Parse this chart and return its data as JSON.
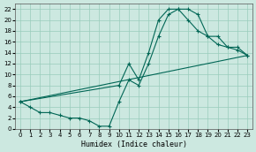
{
  "xlabel": "Humidex (Indice chaleur)",
  "bg_color": "#cce8e0",
  "grid_color": "#99ccbb",
  "line_color": "#006655",
  "xlim": [
    -0.5,
    23.5
  ],
  "ylim": [
    0,
    23
  ],
  "xticks": [
    0,
    1,
    2,
    3,
    4,
    5,
    6,
    7,
    8,
    9,
    10,
    11,
    12,
    13,
    14,
    15,
    16,
    17,
    18,
    19,
    20,
    21,
    22,
    23
  ],
  "yticks": [
    0,
    2,
    4,
    6,
    8,
    10,
    12,
    14,
    16,
    18,
    20,
    22
  ],
  "line1_x": [
    0,
    1,
    2,
    3,
    4,
    5,
    6,
    7,
    8,
    9,
    10,
    11,
    12,
    13,
    14,
    15,
    16,
    17,
    18,
    19,
    20,
    21,
    22,
    23
  ],
  "line1_y": [
    5,
    4,
    3,
    3,
    2.5,
    2,
    2,
    1.5,
    0.5,
    0.5,
    5,
    9,
    8,
    12,
    17,
    21,
    22,
    22,
    21,
    17,
    15.5,
    15,
    14.5,
    13.5
  ],
  "line2_x": [
    0,
    10,
    11,
    12,
    13,
    14,
    15,
    16,
    17,
    18,
    19,
    20,
    21,
    22,
    23
  ],
  "line2_y": [
    5,
    8,
    12,
    9,
    14,
    20,
    22,
    22,
    20,
    18,
    17,
    17,
    15,
    15,
    13.5
  ],
  "line3_x": [
    0,
    23
  ],
  "line3_y": [
    5,
    13.5
  ]
}
